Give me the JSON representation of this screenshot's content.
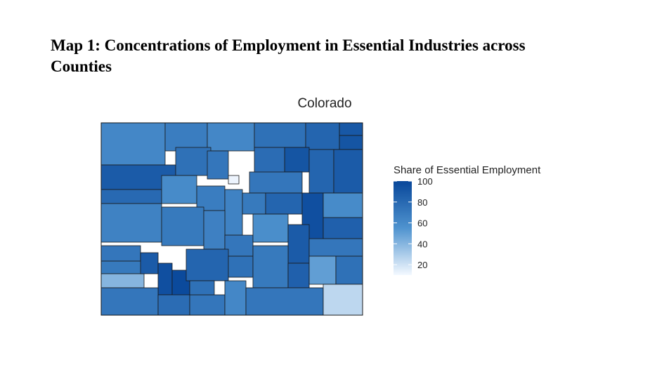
{
  "chart_data": {
    "type": "choropleth",
    "title": "Map 1: Concentrations of Employment in Essential Industries across Counties",
    "map_title": "Colorado",
    "legend_title": "Share of Essential Employment",
    "clim": [
      10,
      100
    ],
    "colorbar_ticks": [
      20,
      40,
      60,
      80,
      100
    ],
    "colors": [
      "#f4f9ff",
      "#4f93cf",
      "#08479a"
    ],
    "values": [
      62,
      68,
      62,
      75,
      82,
      90,
      92,
      92,
      82,
      88,
      88,
      75,
      72,
      78,
      72,
      12,
      80,
      65,
      60,
      68,
      65,
      70,
      82,
      95,
      60,
      85,
      70,
      66,
      72,
      58,
      88,
      72,
      72,
      70,
      40,
      88,
      95,
      98,
      82,
      75,
      70,
      85,
      50,
      75,
      72,
      78,
      72,
      62,
      72,
      25,
      75
    ]
  }
}
